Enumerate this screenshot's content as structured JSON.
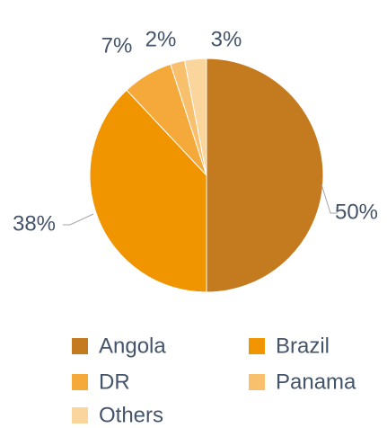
{
  "chart_data": {
    "type": "pie",
    "categories": [
      "Angola",
      "Brazil",
      "DR",
      "Panama",
      "Others"
    ],
    "values": [
      50,
      38,
      7,
      2,
      3
    ],
    "value_labels": [
      "50%",
      "38%",
      "7%",
      "2%",
      "3%"
    ],
    "colors": [
      "#c47a1e",
      "#f09400",
      "#f4a93a",
      "#f8c06c",
      "#fad59c"
    ]
  }
}
